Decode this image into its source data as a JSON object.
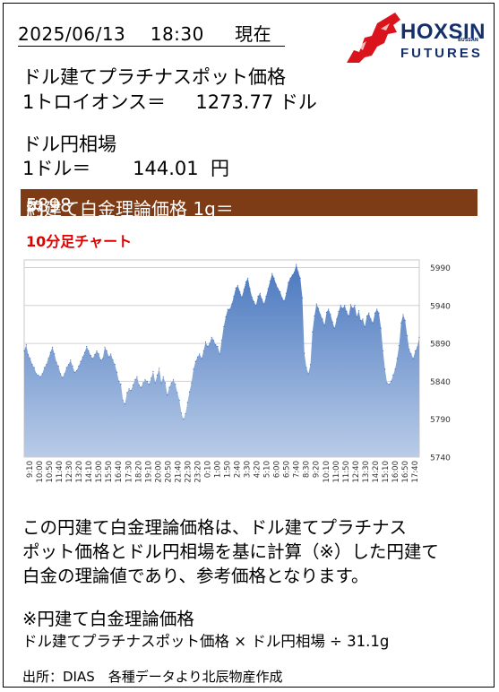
{
  "header": {
    "date": "2025/06/13",
    "time": "18:30",
    "as_of": "現在"
  },
  "logo": {
    "wordmark": "HOXSIN",
    "tagline": "BUSSAN",
    "sub": "FUTURES"
  },
  "spot": {
    "label": "ドル建てプラチナスポット価格",
    "unit_label": "1トロイオンス＝",
    "value": "1273.77",
    "unit": "ドル"
  },
  "fx": {
    "label": "ドル円相場",
    "unit_label": "1ドル＝",
    "value": "144.01",
    "unit": "円"
  },
  "theoretical": {
    "label": "円建て白金理論価格 1g＝",
    "approx": "約",
    "value": "5898",
    "unit": "円"
  },
  "chart_title": "10分足チャート",
  "chart_data": {
    "type": "area",
    "title": "10分足チャート",
    "ylim": [
      5740,
      6000
    ],
    "yticks": [
      5740,
      5790,
      5840,
      5890,
      5940,
      5990
    ],
    "grid": true,
    "color": "#5b86c5",
    "x_tick_labels": [
      "9:10",
      "10:00",
      "10:50",
      "11:40",
      "12:30",
      "13:20",
      "14:10",
      "15:00",
      "15:50",
      "16:40",
      "17:30",
      "18:20",
      "19:10",
      "20:00",
      "20:50",
      "21:40",
      "22:30",
      "23:20",
      "0:10",
      "1:00",
      "1:50",
      "2:40",
      "3:30",
      "4:20",
      "5:10",
      "6:00",
      "6:50",
      "7:40",
      "8:30",
      "9:20",
      "10:10",
      "11:00",
      "11:50",
      "12:40",
      "13:30",
      "14:20",
      "15:10",
      "16:00",
      "16:50",
      "17:40"
    ],
    "values": [
      5880,
      5888,
      5875,
      5870,
      5862,
      5858,
      5850,
      5848,
      5846,
      5850,
      5858,
      5862,
      5870,
      5878,
      5885,
      5876,
      5865,
      5860,
      5850,
      5845,
      5850,
      5858,
      5862,
      5868,
      5860,
      5852,
      5854,
      5860,
      5866,
      5872,
      5878,
      5886,
      5880,
      5874,
      5870,
      5875,
      5880,
      5876,
      5868,
      5870,
      5885,
      5880,
      5872,
      5876,
      5868,
      5862,
      5852,
      5840,
      5836,
      5815,
      5810,
      5825,
      5830,
      5828,
      5835,
      5842,
      5846,
      5835,
      5832,
      5838,
      5842,
      5840,
      5836,
      5844,
      5853,
      5838,
      5848,
      5857,
      5838,
      5846,
      5838,
      5822,
      5832,
      5838,
      5842,
      5836,
      5825,
      5815,
      5798,
      5790,
      5797,
      5812,
      5826,
      5838,
      5856,
      5866,
      5872,
      5876,
      5870,
      5880,
      5892,
      5886,
      5890,
      5898,
      5894,
      5888,
      5886,
      5876,
      5894,
      5912,
      5925,
      5935,
      5935,
      5942,
      5952,
      5963,
      5966,
      5958,
      5951,
      5961,
      5971,
      5976,
      5962,
      5951,
      5945,
      5940,
      5952,
      5956,
      5948,
      5942,
      5952,
      5962,
      5972,
      5982,
      5976,
      5968,
      5962,
      5958,
      5950,
      5946,
      5956,
      5970,
      5976,
      5980,
      5984,
      5994,
      5984,
      5976,
      5950,
      5877,
      5858,
      5850,
      5862,
      5905,
      5926,
      5942,
      5936,
      5928,
      5922,
      5914,
      5931,
      5935,
      5928,
      5918,
      5910,
      5922,
      5932,
      5940,
      5936,
      5940,
      5932,
      5926,
      5941,
      5936,
      5940,
      5925,
      5933,
      5920,
      5922,
      5912,
      5926,
      5930,
      5922,
      5917,
      5930,
      5935,
      5930,
      5910,
      5880,
      5856,
      5838,
      5836,
      5840,
      5848,
      5856,
      5870,
      5887,
      5917,
      5928,
      5920,
      5900,
      5882,
      5876,
      5870,
      5880,
      5885,
      5898
    ]
  },
  "explanation": [
    "この円建て白金理論価格は、ドル建てプラチナス",
    "ポット価格とドル円相場を基に計算（※）した円建て",
    "白金の理論値であり、参考価格となります。"
  ],
  "note_title": "※円建て白金理論価格",
  "formula": "ドル建てプラチナスポット価格 × ドル円相場 ÷ 31.1g",
  "source": "出所：DIAS　各種データより北辰物産作成"
}
